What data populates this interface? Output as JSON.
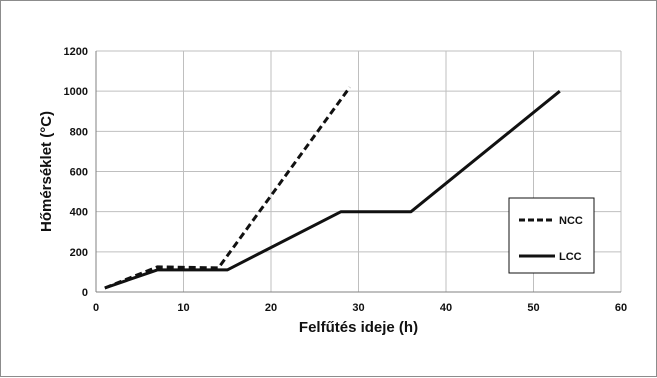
{
  "chart_data": {
    "type": "line",
    "title": "",
    "xlabel": "Felfűtés ideje (h)",
    "ylabel": "Hőmérséklet  (°C)",
    "xlim": [
      0,
      60
    ],
    "ylim": [
      0,
      1200
    ],
    "x_ticks": [
      0,
      10,
      20,
      30,
      40,
      50,
      60
    ],
    "y_ticks": [
      0,
      200,
      400,
      600,
      800,
      1000,
      1200
    ],
    "grid": true,
    "legend_position": "right",
    "series": [
      {
        "name": "NCC",
        "style": "dashed",
        "color": "#111111",
        "points": [
          [
            1,
            20
          ],
          [
            7,
            125
          ],
          [
            14,
            120
          ],
          [
            29,
            1020
          ]
        ]
      },
      {
        "name": "LCC",
        "style": "solid",
        "color": "#111111",
        "points": [
          [
            1,
            20
          ],
          [
            7,
            110
          ],
          [
            15,
            110
          ],
          [
            28,
            400
          ],
          [
            36,
            400
          ],
          [
            53,
            1000
          ]
        ]
      }
    ]
  }
}
